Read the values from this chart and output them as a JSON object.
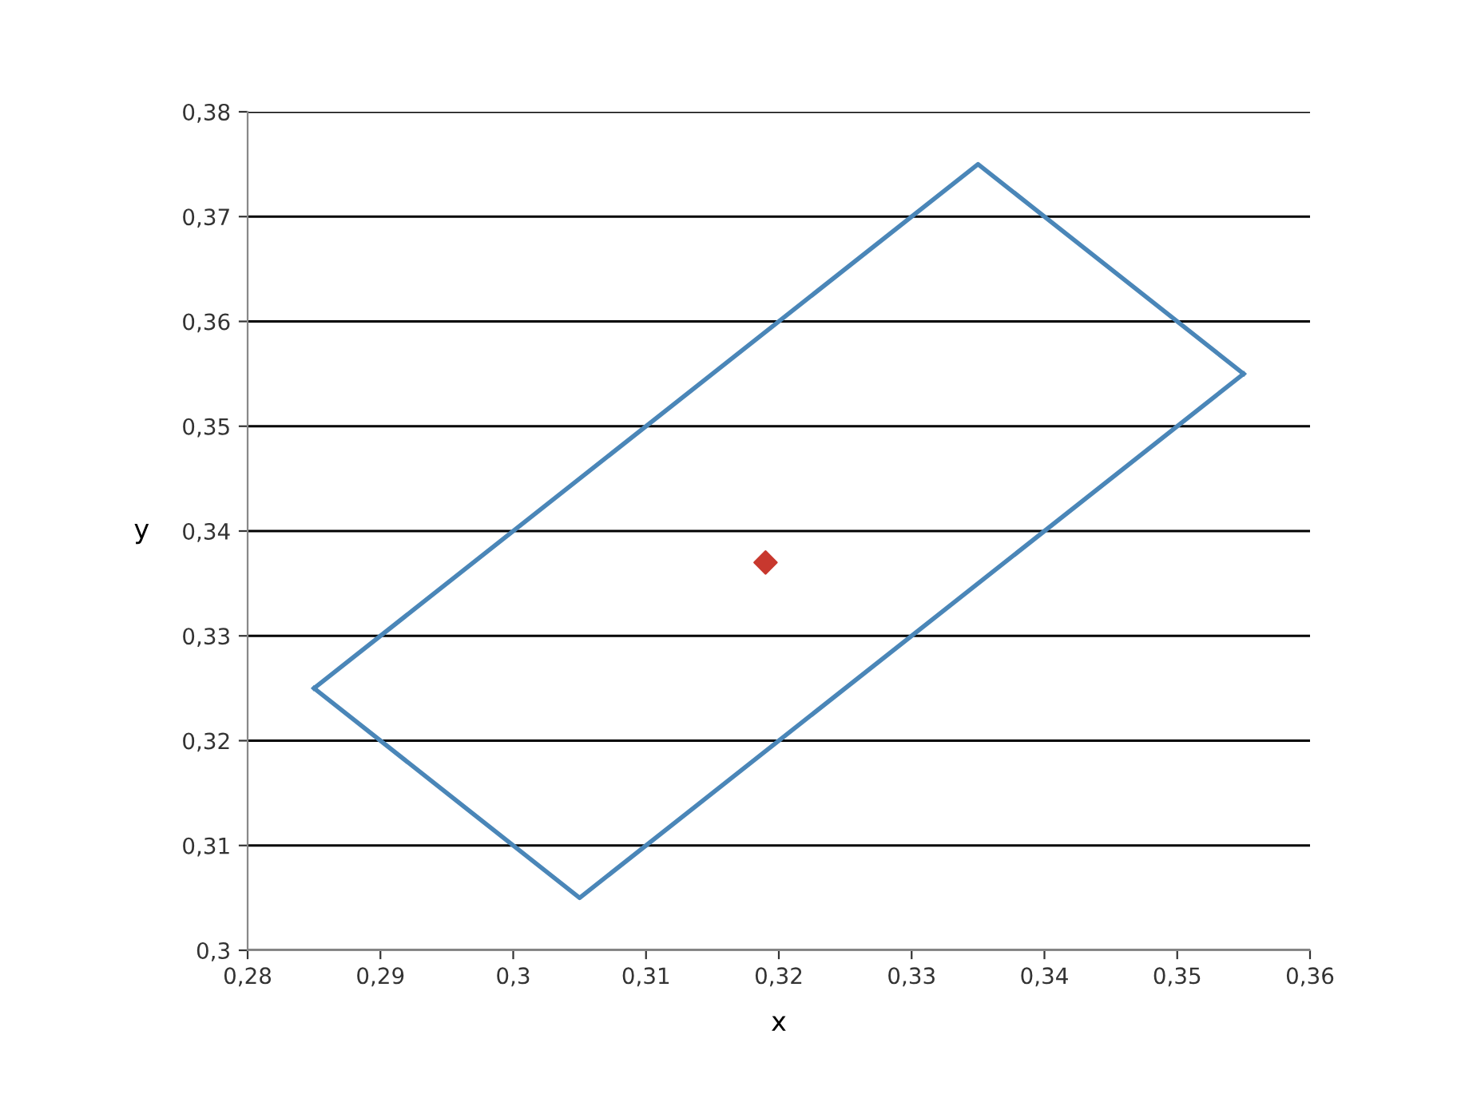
{
  "chart_data": {
    "type": "scatter",
    "xlabel": "x",
    "ylabel": "y",
    "series": [
      {
        "type": "line",
        "color": "#4a86b8",
        "x": [
          0.285,
          0.335,
          0.355
        ],
        "values": [
          0.325,
          0.375,
          0.355
        ],
        "marker": "none"
      },
      {
        "type": "line",
        "color": "#4a86b8",
        "x": [
          0.285,
          0.305,
          0.355
        ],
        "values": [
          0.325,
          0.305,
          0.355
        ],
        "marker": "none"
      },
      {
        "color": "#c8382e",
        "x": [
          0.319
        ],
        "values": [
          0.337
        ],
        "marker": "diamond"
      }
    ],
    "xlim": [
      0.28,
      0.36
    ],
    "xticks": [
      {
        "value": 0.28,
        "label": "0,28"
      },
      {
        "value": 0.29,
        "label": "0,29"
      },
      {
        "value": 0.3,
        "label": "0,3"
      },
      {
        "value": 0.31,
        "label": "0,31"
      },
      {
        "value": 0.32,
        "label": "0,32"
      },
      {
        "value": 0.33,
        "label": "0,33"
      },
      {
        "value": 0.34,
        "label": "0,34"
      },
      {
        "value": 0.35,
        "label": "0,35"
      },
      {
        "value": 0.36,
        "label": "0,36"
      }
    ],
    "ylim": [
      0.3,
      0.38
    ],
    "yticks": [
      {
        "value": 0.3,
        "label": "0,3"
      },
      {
        "value": 0.31,
        "label": "0,31"
      },
      {
        "value": 0.32,
        "label": "0,32"
      },
      {
        "value": 0.33,
        "label": "0,33"
      },
      {
        "value": 0.34,
        "label": "0,34"
      },
      {
        "value": 0.35,
        "label": "0,35"
      },
      {
        "value": 0.36,
        "label": "0,36"
      },
      {
        "value": 0.37,
        "label": "0,37"
      },
      {
        "value": 0.38,
        "label": "0,38"
      }
    ],
    "grid": "y",
    "legend": false
  }
}
